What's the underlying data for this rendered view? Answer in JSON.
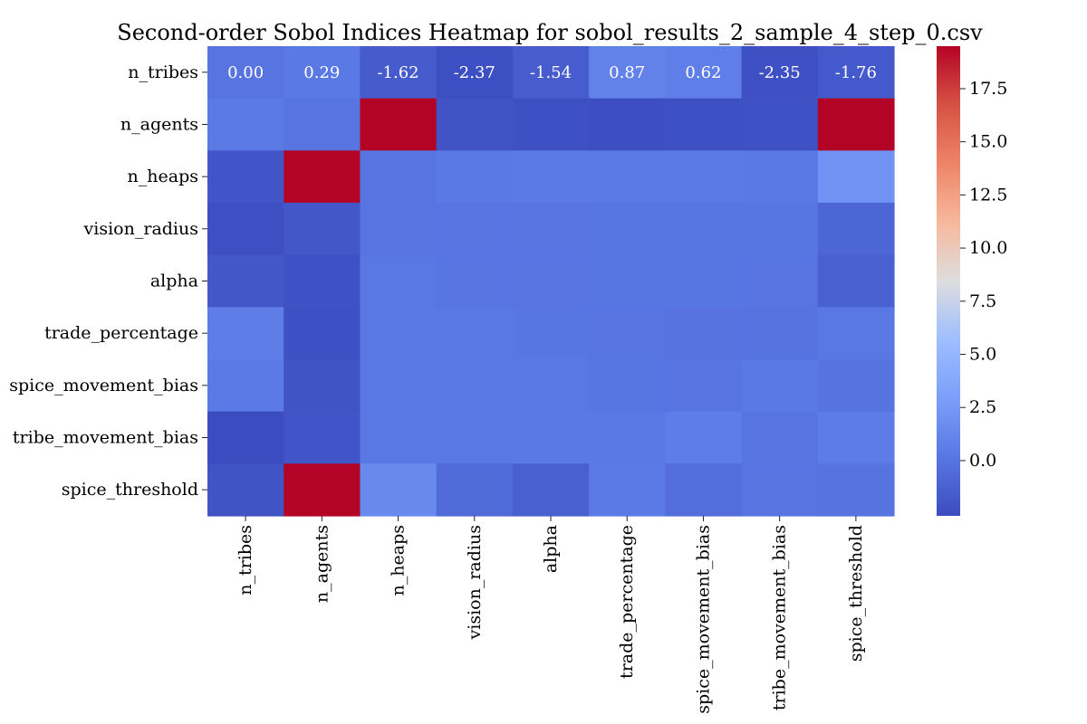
{
  "chart_data": {
    "type": "heatmap",
    "title": "Second-order Sobol Indices Heatmap for sobol_results_2_sample_4_step_0.csv",
    "xlabel": "",
    "ylabel": "",
    "categories": [
      "n_tribes",
      "n_agents",
      "n_heaps",
      "vision_radius",
      "alpha",
      "trade_percentage",
      "spice_movement_bias",
      "tribe_movement_bias",
      "spice_threshold"
    ],
    "rows": [
      "n_tribes",
      "n_agents",
      "n_heaps",
      "vision_radius",
      "alpha",
      "trade_percentage",
      "spice_movement_bias",
      "tribe_movement_bias",
      "spice_threshold"
    ],
    "values": [
      [
        0.0,
        0.29,
        -1.62,
        -2.37,
        -1.54,
        0.87,
        0.62,
        -2.35,
        -1.76
      ],
      [
        0.4,
        0.0,
        19.5,
        -2.1,
        -2.3,
        -2.45,
        -2.3,
        -2.2,
        19.5
      ],
      [
        -2.0,
        19.5,
        0.0,
        0.3,
        0.4,
        0.4,
        0.4,
        0.3,
        2.0
      ],
      [
        -2.4,
        -1.9,
        0.0,
        0.0,
        0.0,
        0.1,
        0.1,
        0.1,
        -0.9
      ],
      [
        -1.9,
        -2.2,
        0.2,
        0.0,
        0.0,
        0.1,
        0.1,
        0.0,
        -1.3
      ],
      [
        0.6,
        -2.3,
        0.2,
        0.2,
        0.1,
        0.0,
        -0.1,
        -0.1,
        0.2
      ],
      [
        0.4,
        -2.1,
        0.2,
        0.3,
        0.2,
        0.1,
        0.0,
        0.3,
        -0.1
      ],
      [
        -2.6,
        -2.0,
        0.2,
        0.2,
        0.3,
        0.3,
        0.6,
        0.0,
        0.5
      ],
      [
        -2.1,
        19.5,
        1.4,
        -0.7,
        -1.3,
        0.4,
        -0.4,
        0.0,
        -0.1
      ]
    ],
    "annotated_row": 0,
    "annotation_labels": [
      "0.00",
      "0.29",
      "-1.62",
      "-2.37",
      "-1.54",
      "0.87",
      "0.62",
      "-2.35",
      "-1.76"
    ],
    "colormap": "coolwarm",
    "vmin": -2.6,
    "vmax": 19.5,
    "colorbar": {
      "ticks": [
        -0.0,
        2.5,
        5.0,
        7.5,
        10.0,
        12.5,
        15.0,
        17.5
      ],
      "tick_labels": [
        "0.0",
        "2.5",
        "5.0",
        "7.5",
        "10.0",
        "12.5",
        "15.0",
        "17.5"
      ]
    },
    "grid": false,
    "legend": "colorbar-right"
  }
}
